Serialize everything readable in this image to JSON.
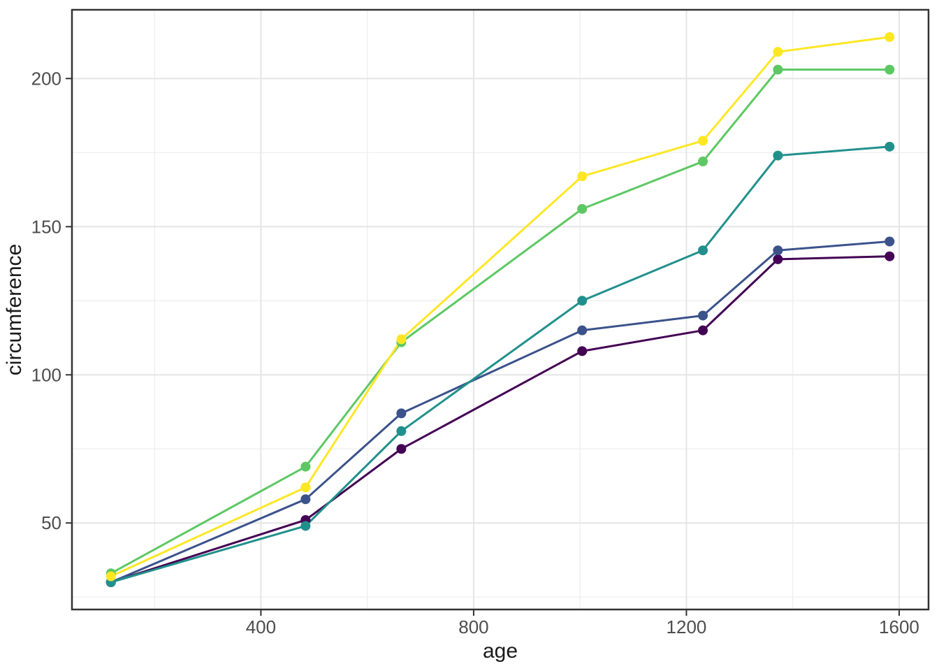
{
  "chart_data": {
    "type": "line",
    "title": "",
    "xlabel": "age",
    "ylabel": "circumference",
    "x": [
      118,
      484,
      664,
      1004,
      1231,
      1372,
      1582
    ],
    "series": [
      {
        "name": "purple-series",
        "color": "#440154",
        "values": [
          30,
          51,
          75,
          108,
          115,
          139,
          140
        ]
      },
      {
        "name": "blue-series",
        "color": "#3B528B",
        "values": [
          30,
          58,
          87,
          115,
          120,
          142,
          145
        ]
      },
      {
        "name": "teal-series",
        "color": "#21908C",
        "values": [
          30,
          49,
          81,
          125,
          142,
          174,
          177
        ]
      },
      {
        "name": "green-series",
        "color": "#5DC863",
        "values": [
          33,
          69,
          111,
          156,
          172,
          203,
          203
        ]
      },
      {
        "name": "yellow-series",
        "color": "#FDE725",
        "values": [
          32,
          62,
          112,
          167,
          179,
          209,
          214
        ]
      }
    ],
    "xlim": [
      44.8,
      1655.2
    ],
    "ylim": [
      20.8,
      223.2
    ],
    "x_major_ticks": [
      400,
      800,
      1200,
      1600
    ],
    "y_major_ticks": [
      50,
      100,
      150,
      200
    ],
    "x_minor_gridlines": [
      200,
      600,
      1000,
      1400
    ],
    "y_minor_gridlines": [
      25,
      75,
      125,
      175
    ],
    "grid": true,
    "legend_position": "none",
    "panel_border_color": "#333333",
    "major_grid_color": "#e5e5e5",
    "minor_grid_color": "#f0f0f0",
    "tick_color": "#333333",
    "tick_label_color": "#4d4d4d",
    "axis_title_color": "#1a1a1a",
    "background_color": "#ffffff"
  }
}
